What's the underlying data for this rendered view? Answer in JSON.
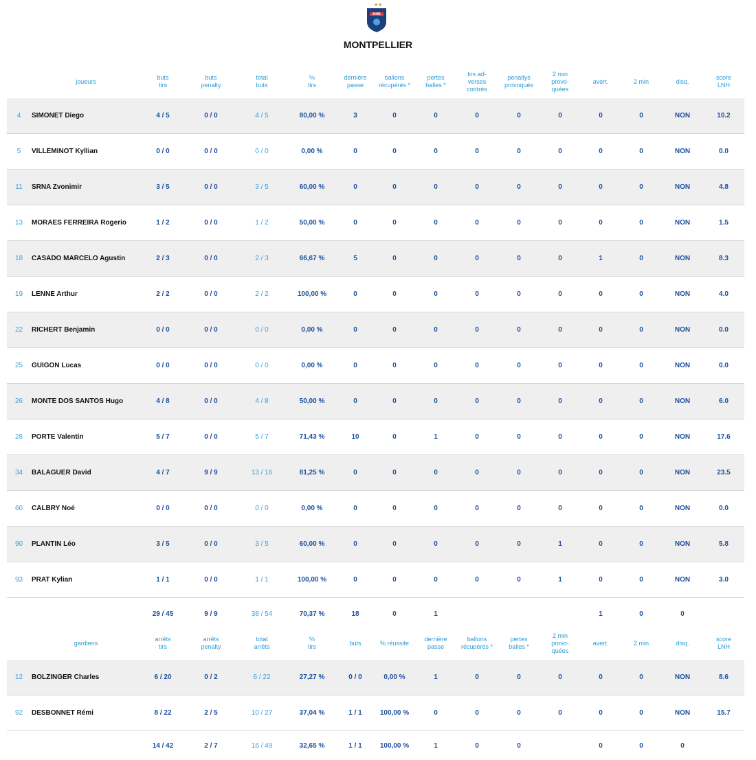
{
  "header": {
    "team": "MONTPELLIER"
  },
  "players": {
    "columns": [
      "joueurs",
      "buts\ntirs",
      "buts\npenalty",
      "total\nbuts",
      "%\ntirs",
      "dernière\npasse",
      "ballons\nrécupérés *",
      "pertes\nballes *",
      "tirs ad-\nverses\ncontrés",
      "penaltys\nprovoqués",
      "2 min\nprovo-\nquées",
      "avert.",
      "2 min",
      "disq.",
      "score\nLNH"
    ],
    "rows": [
      [
        "4",
        "SIMONET Diego",
        "4 / 5",
        "0 / 0",
        "4 / 5",
        "80,00 %",
        "3",
        "0",
        "0",
        "0",
        "0",
        "0",
        "0",
        "0",
        "NON",
        "10.2"
      ],
      [
        "5",
        "VILLEMINOT Kyllian",
        "0 / 0",
        "0 / 0",
        "0 / 0",
        "0,00 %",
        "0",
        "0",
        "0",
        "0",
        "0",
        "0",
        "0",
        "0",
        "NON",
        "0.0"
      ],
      [
        "11",
        "SRNA Zvonimir",
        "3 / 5",
        "0 / 0",
        "3 / 5",
        "60,00 %",
        "0",
        "0",
        "0",
        "0",
        "0",
        "0",
        "0",
        "0",
        "NON",
        "4.8"
      ],
      [
        "13",
        "MORAES FERREIRA Rogerio",
        "1 / 2",
        "0 / 0",
        "1 / 2",
        "50,00 %",
        "0",
        "0",
        "0",
        "0",
        "0",
        "0",
        "0",
        "0",
        "NON",
        "1.5"
      ],
      [
        "18",
        "CASADO MARCELO Agustin",
        "2 / 3",
        "0 / 0",
        "2 / 3",
        "66,67 %",
        "5",
        "0",
        "0",
        "0",
        "0",
        "0",
        "1",
        "0",
        "NON",
        "8.3"
      ],
      [
        "19",
        "LENNE Arthur",
        "2 / 2",
        "0 / 0",
        "2 / 2",
        "100,00 %",
        "0",
        "0",
        "0",
        "0",
        "0",
        "0",
        "0",
        "0",
        "NON",
        "4.0"
      ],
      [
        "22",
        "RICHERT Benjamin",
        "0 / 0",
        "0 / 0",
        "0 / 0",
        "0,00 %",
        "0",
        "0",
        "0",
        "0",
        "0",
        "0",
        "0",
        "0",
        "NON",
        "0.0"
      ],
      [
        "25",
        "GUIGON Lucas",
        "0 / 0",
        "0 / 0",
        "0 / 0",
        "0,00 %",
        "0",
        "0",
        "0",
        "0",
        "0",
        "0",
        "0",
        "0",
        "NON",
        "0.0"
      ],
      [
        "26",
        "MONTE DOS SANTOS Hugo",
        "4 / 8",
        "0 / 0",
        "4 / 8",
        "50,00 %",
        "0",
        "0",
        "0",
        "0",
        "0",
        "0",
        "0",
        "0",
        "NON",
        "6.0"
      ],
      [
        "28",
        "PORTE Valentin",
        "5 / 7",
        "0 / 0",
        "5 / 7",
        "71,43 %",
        "10",
        "0",
        "1",
        "0",
        "0",
        "0",
        "0",
        "0",
        "NON",
        "17.6"
      ],
      [
        "34",
        "BALAGUER David",
        "4 / 7",
        "9 / 9",
        "13 / 16",
        "81,25 %",
        "0",
        "0",
        "0",
        "0",
        "0",
        "0",
        "0",
        "0",
        "NON",
        "23.5"
      ],
      [
        "60",
        "CALBRY Noé",
        "0 / 0",
        "0 / 0",
        "0 / 0",
        "0,00 %",
        "0",
        "0",
        "0",
        "0",
        "0",
        "0",
        "0",
        "0",
        "NON",
        "0.0"
      ],
      [
        "90",
        "PLANTIN Léo",
        "3 / 5",
        "0 / 0",
        "3 / 5",
        "60,00 %",
        "0",
        "0",
        "0",
        "0",
        "0",
        "1",
        "0",
        "0",
        "NON",
        "5.8"
      ],
      [
        "93",
        "PRAT Kylian",
        "1 / 1",
        "0 / 0",
        "1 / 1",
        "100,00 %",
        "0",
        "0",
        "0",
        "0",
        "0",
        "1",
        "0",
        "0",
        "NON",
        "3.0"
      ]
    ],
    "totals": [
      "29 / 45",
      "9 / 9",
      "38 / 54",
      "70,37 %",
      "18",
      "0",
      "1",
      null,
      null,
      null,
      "1",
      "0",
      "0",
      null
    ]
  },
  "goalkeepers": {
    "columns": [
      "gardiens",
      "arrêts\ntirs",
      "arrêts\npenalty",
      "total\narrêts",
      "%\ntirs",
      "buts",
      "% réussite",
      "dernière\npasse",
      "ballons\nrécupérés *",
      "pertes\nballes *",
      "2 min\nprovo-\nquées",
      "avert.",
      "2 min",
      "disq.",
      "score\nLNH"
    ],
    "rows": [
      [
        "12",
        "BOLZINGER Charles",
        "6 / 20",
        "0 / 2",
        "6 / 22",
        "27,27 %",
        "0 / 0",
        "0,00 %",
        "1",
        "0",
        "0",
        "0",
        "0",
        "0",
        "NON",
        "8.6"
      ],
      [
        "92",
        "DESBONNET Rémi",
        "8 / 22",
        "2 / 5",
        "10 / 27",
        "37,04 %",
        "1 / 1",
        "100,00 %",
        "0",
        "0",
        "0",
        "0",
        "0",
        "0",
        "NON",
        "15.7"
      ]
    ],
    "totals": [
      "14 / 42",
      "2 / 7",
      "16 / 49",
      "32,65 %",
      "1 / 1",
      "100,00 %",
      "1",
      "0",
      "0",
      null,
      "0",
      "0",
      "0",
      null
    ]
  }
}
